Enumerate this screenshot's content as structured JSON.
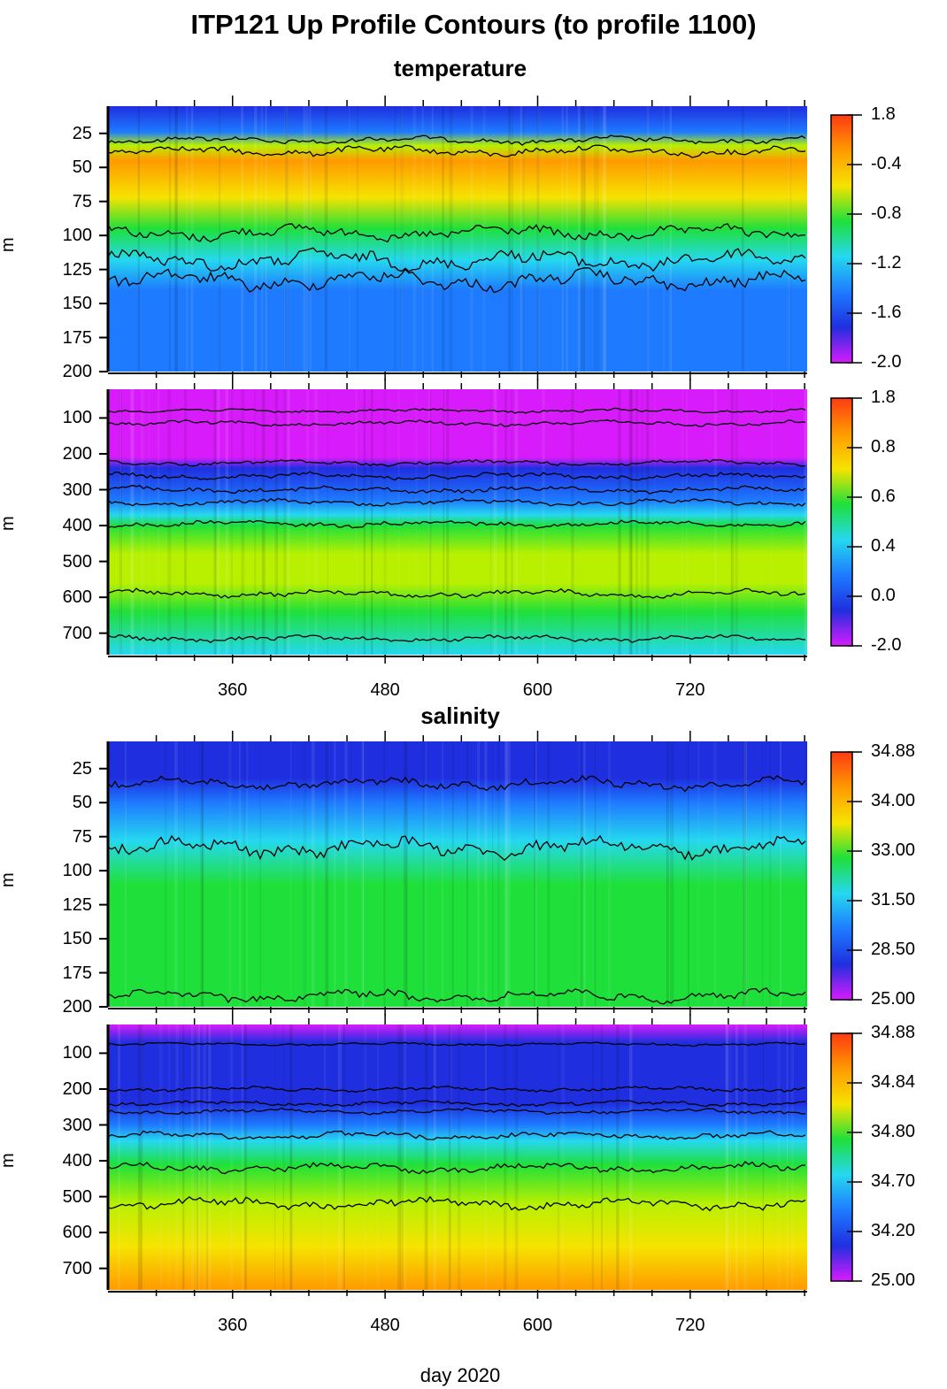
{
  "page": {
    "title": "ITP121 Up Profile Contours (to profile 1100)",
    "x_axis_title": "day 2020",
    "y_axis_title_fragment": "m"
  },
  "colors": {
    "violet": "#d81bfb",
    "deep_blue": "#1f2fe0",
    "blue": "#1e7bff",
    "cyan": "#25d8ef",
    "green": "#1fe03a",
    "yellow_green": "#b8f000",
    "yellow": "#f6e300",
    "orange": "#ff9a00",
    "red": "#ff3a12",
    "contour": "#000000"
  },
  "chart_data": [
    {
      "type": "heatmap",
      "section_title": "temperature",
      "variable": "temperature",
      "x_ticks": [
        360,
        480,
        600,
        720
      ],
      "xlim": [
        262,
        812
      ],
      "ylim": [
        5,
        200
      ],
      "y_inverted": true,
      "y_ticks": [
        25,
        50,
        75,
        100,
        125,
        150,
        175,
        200
      ],
      "colorbar": {
        "labels": [
          "1.8",
          "-0.4",
          "-0.8",
          "-1.2",
          "-1.6",
          "-2.0"
        ]
      },
      "bands": [
        {
          "depth": 5,
          "color": "deep_blue"
        },
        {
          "depth": 24,
          "color": "blue"
        },
        {
          "depth": 34,
          "color": "yellow_green"
        },
        {
          "depth": 45,
          "color": "orange"
        },
        {
          "depth": 72,
          "color": "yellow"
        },
        {
          "depth": 95,
          "color": "green"
        },
        {
          "depth": 118,
          "color": "cyan"
        },
        {
          "depth": 140,
          "color": "blue"
        },
        {
          "depth": 200,
          "color": "blue"
        }
      ],
      "contours": [
        {
          "base": 30,
          "amp": 3
        },
        {
          "base": 38,
          "amp": 4
        },
        {
          "base": 98,
          "amp": 6
        },
        {
          "base": 118,
          "amp": 8
        },
        {
          "base": 133,
          "amp": 8
        }
      ]
    },
    {
      "type": "heatmap",
      "variable": "temperature",
      "x_ticks": [
        360,
        480,
        600,
        720
      ],
      "xlim": [
        262,
        812
      ],
      "ylim": [
        20,
        760
      ],
      "y_inverted": true,
      "y_ticks": [
        100,
        200,
        300,
        400,
        500,
        600,
        700
      ],
      "colorbar": {
        "labels": [
          "1.8",
          "0.8",
          "0.6",
          "0.4",
          "0.0",
          "-2.0"
        ]
      },
      "bands": [
        {
          "depth": 20,
          "color": "violet"
        },
        {
          "depth": 80,
          "color": "violet"
        },
        {
          "depth": 210,
          "color": "violet"
        },
        {
          "depth": 240,
          "color": "deep_blue"
        },
        {
          "depth": 330,
          "color": "blue"
        },
        {
          "depth": 370,
          "color": "cyan"
        },
        {
          "depth": 400,
          "color": "green"
        },
        {
          "depth": 480,
          "color": "yellow_green"
        },
        {
          "depth": 560,
          "color": "yellow_green"
        },
        {
          "depth": 640,
          "color": "green"
        },
        {
          "depth": 760,
          "color": "cyan"
        }
      ],
      "contours": [
        {
          "base": 80,
          "amp": 6
        },
        {
          "base": 115,
          "amp": 8
        },
        {
          "base": 225,
          "amp": 8
        },
        {
          "base": 262,
          "amp": 10
        },
        {
          "base": 300,
          "amp": 10
        },
        {
          "base": 335,
          "amp": 10
        },
        {
          "base": 395,
          "amp": 10
        },
        {
          "base": 590,
          "amp": 12
        },
        {
          "base": 715,
          "amp": 10
        }
      ]
    },
    {
      "type": "heatmap",
      "section_title": "salinity",
      "variable": "salinity",
      "x_ticks": [
        360,
        480,
        600,
        720
      ],
      "xlim": [
        262,
        812
      ],
      "ylim": [
        5,
        200
      ],
      "y_inverted": true,
      "y_ticks": [
        25,
        50,
        75,
        100,
        125,
        150,
        175,
        200
      ],
      "colorbar": {
        "labels": [
          "34.88",
          "34.00",
          "33.00",
          "31.50",
          "28.50",
          "25.00"
        ]
      },
      "bands": [
        {
          "depth": 5,
          "color": "deep_blue"
        },
        {
          "depth": 32,
          "color": "deep_blue"
        },
        {
          "depth": 50,
          "color": "blue"
        },
        {
          "depth": 78,
          "color": "cyan"
        },
        {
          "depth": 110,
          "color": "green"
        },
        {
          "depth": 200,
          "color": "green"
        }
      ],
      "contours": [
        {
          "base": 36,
          "amp": 5
        },
        {
          "base": 83,
          "amp": 8
        },
        {
          "base": 192,
          "amp": 5
        }
      ]
    },
    {
      "type": "heatmap",
      "variable": "salinity",
      "x_ticks": [
        360,
        480,
        600,
        720
      ],
      "xlim": [
        262,
        812
      ],
      "ylim": [
        20,
        760
      ],
      "y_inverted": true,
      "y_ticks": [
        100,
        200,
        300,
        400,
        500,
        600,
        700
      ],
      "colorbar": {
        "labels": [
          "34.88",
          "34.84",
          "34.80",
          "34.70",
          "34.20",
          "25.00"
        ]
      },
      "bands": [
        {
          "depth": 20,
          "color": "violet"
        },
        {
          "depth": 70,
          "color": "deep_blue"
        },
        {
          "depth": 240,
          "color": "deep_blue"
        },
        {
          "depth": 300,
          "color": "blue"
        },
        {
          "depth": 345,
          "color": "cyan"
        },
        {
          "depth": 410,
          "color": "green"
        },
        {
          "depth": 520,
          "color": "yellow_green"
        },
        {
          "depth": 640,
          "color": "yellow"
        },
        {
          "depth": 760,
          "color": "orange"
        }
      ],
      "contours": [
        {
          "base": 75,
          "amp": 5
        },
        {
          "base": 200,
          "amp": 8
        },
        {
          "base": 240,
          "amp": 8
        },
        {
          "base": 262,
          "amp": 8
        },
        {
          "base": 330,
          "amp": 12
        },
        {
          "base": 420,
          "amp": 15
        },
        {
          "base": 520,
          "amp": 18
        }
      ]
    }
  ]
}
